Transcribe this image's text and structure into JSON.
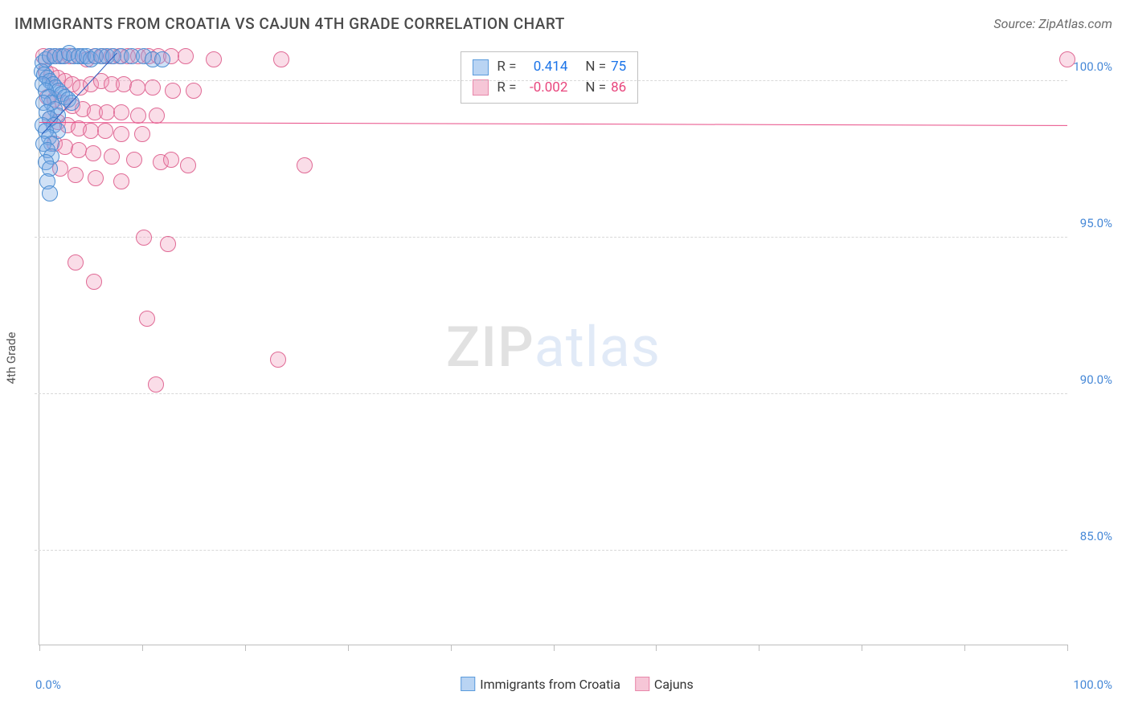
{
  "title": "IMMIGRANTS FROM CROATIA VS CAJUN 4TH GRADE CORRELATION CHART",
  "source": "Source: ZipAtlas.com",
  "watermark": {
    "part1": "ZIP",
    "part2": "atlas"
  },
  "ylabel": "4th Grade",
  "chart": {
    "type": "scatter",
    "background_color": "#ffffff",
    "grid_color": "#d8d8d8",
    "axis_color": "#bdbdbd",
    "xlim": [
      0,
      100
    ],
    "ylim": [
      82,
      101
    ],
    "yticks": [
      {
        "v": 85,
        "label": "85.0%"
      },
      {
        "v": 90,
        "label": "90.0%"
      },
      {
        "v": 95,
        "label": "95.0%"
      },
      {
        "v": 100,
        "label": "100.0%"
      }
    ],
    "xtick_positions": [
      0,
      10,
      20,
      30,
      40,
      50,
      60,
      70,
      80,
      90,
      100
    ],
    "xlim_labels": {
      "left": "0.0%",
      "right": "100.0%"
    },
    "marker_radius": 9,
    "marker_border": 1.4,
    "series": [
      {
        "name": "Immigrants from Croatia",
        "swatch_fill": "#b9d4f3",
        "swatch_border": "#5a9bdc",
        "point_fill": "rgba(120,170,230,0.35)",
        "point_border": "#4d8fd3",
        "R": "0.414",
        "N": "75",
        "trend": {
          "x1": 0.2,
          "y1": 98.3,
          "x2": 7.5,
          "y2": 100.9,
          "color": "#2b5fbf",
          "width": 1.6
        },
        "points": [
          [
            0.3,
            100.6
          ],
          [
            0.6,
            100.7
          ],
          [
            1.0,
            100.8
          ],
          [
            1.5,
            100.8
          ],
          [
            2.0,
            100.8
          ],
          [
            2.4,
            100.8
          ],
          [
            2.9,
            100.9
          ],
          [
            3.4,
            100.8
          ],
          [
            3.8,
            100.8
          ],
          [
            4.2,
            100.8
          ],
          [
            4.6,
            100.8
          ],
          [
            5.0,
            100.7
          ],
          [
            5.5,
            100.8
          ],
          [
            6.0,
            100.8
          ],
          [
            6.6,
            100.8
          ],
          [
            7.2,
            100.8
          ],
          [
            8.0,
            100.8
          ],
          [
            9.0,
            100.8
          ],
          [
            10.2,
            100.8
          ],
          [
            11.0,
            100.7
          ],
          [
            12.0,
            100.7
          ],
          [
            0.2,
            100.3
          ],
          [
            0.5,
            100.2
          ],
          [
            0.8,
            100.1
          ],
          [
            1.0,
            100.0
          ],
          [
            1.3,
            99.9
          ],
          [
            1.6,
            99.8
          ],
          [
            1.9,
            99.7
          ],
          [
            2.2,
            99.6
          ],
          [
            2.5,
            99.5
          ],
          [
            2.8,
            99.4
          ],
          [
            3.1,
            99.3
          ],
          [
            0.3,
            99.9
          ],
          [
            0.6,
            99.7
          ],
          [
            0.9,
            99.5
          ],
          [
            1.2,
            99.3
          ],
          [
            1.5,
            99.1
          ],
          [
            1.8,
            98.9
          ],
          [
            0.4,
            99.3
          ],
          [
            0.7,
            99.0
          ],
          [
            1.0,
            98.8
          ],
          [
            1.4,
            98.6
          ],
          [
            1.8,
            98.4
          ],
          [
            0.3,
            98.6
          ],
          [
            0.6,
            98.4
          ],
          [
            0.9,
            98.2
          ],
          [
            1.2,
            98.0
          ],
          [
            0.4,
            98.0
          ],
          [
            0.8,
            97.8
          ],
          [
            1.2,
            97.6
          ],
          [
            0.6,
            97.4
          ],
          [
            1.0,
            97.2
          ],
          [
            0.8,
            96.8
          ],
          [
            1.0,
            96.4
          ]
        ]
      },
      {
        "name": "Cajuns",
        "swatch_fill": "#f6c6d7",
        "swatch_border": "#e887aa",
        "point_fill": "rgba(240,150,185,0.32)",
        "point_border": "#e06a95",
        "R": "-0.002",
        "N": "86",
        "trend": {
          "x1": 0.0,
          "y1": 98.7,
          "x2": 100.0,
          "y2": 98.6,
          "color": "#e84c86",
          "width": 1.6
        },
        "points": [
          [
            0.4,
            100.8
          ],
          [
            1.0,
            100.8
          ],
          [
            1.6,
            100.8
          ],
          [
            2.3,
            100.8
          ],
          [
            3.0,
            100.8
          ],
          [
            3.8,
            100.8
          ],
          [
            4.6,
            100.7
          ],
          [
            5.4,
            100.8
          ],
          [
            6.2,
            100.8
          ],
          [
            7.0,
            100.8
          ],
          [
            7.8,
            100.8
          ],
          [
            8.6,
            100.8
          ],
          [
            9.6,
            100.8
          ],
          [
            10.6,
            100.8
          ],
          [
            11.6,
            100.8
          ],
          [
            12.8,
            100.8
          ],
          [
            14.2,
            100.8
          ],
          [
            17.0,
            100.7
          ],
          [
            23.5,
            100.7
          ],
          [
            100.0,
            100.7
          ],
          [
            0.6,
            100.3
          ],
          [
            1.2,
            100.2
          ],
          [
            1.8,
            100.1
          ],
          [
            2.5,
            100.0
          ],
          [
            3.2,
            99.9
          ],
          [
            4.0,
            99.8
          ],
          [
            5.0,
            99.9
          ],
          [
            6.0,
            100.0
          ],
          [
            7.0,
            99.9
          ],
          [
            8.2,
            99.9
          ],
          [
            9.5,
            99.8
          ],
          [
            11.0,
            99.8
          ],
          [
            13.0,
            99.7
          ],
          [
            15.0,
            99.7
          ],
          [
            0.8,
            99.5
          ],
          [
            1.5,
            99.4
          ],
          [
            2.3,
            99.3
          ],
          [
            3.2,
            99.2
          ],
          [
            4.2,
            99.1
          ],
          [
            5.4,
            99.0
          ],
          [
            6.6,
            99.0
          ],
          [
            8.0,
            99.0
          ],
          [
            9.6,
            98.9
          ],
          [
            11.4,
            98.9
          ],
          [
            1.0,
            98.8
          ],
          [
            1.8,
            98.7
          ],
          [
            2.7,
            98.6
          ],
          [
            3.8,
            98.5
          ],
          [
            5.0,
            98.4
          ],
          [
            6.4,
            98.4
          ],
          [
            8.0,
            98.3
          ],
          [
            10.0,
            98.3
          ],
          [
            1.5,
            98.0
          ],
          [
            2.5,
            97.9
          ],
          [
            3.8,
            97.8
          ],
          [
            5.2,
            97.7
          ],
          [
            7.0,
            97.6
          ],
          [
            9.2,
            97.5
          ],
          [
            11.8,
            97.4
          ],
          [
            2.0,
            97.2
          ],
          [
            3.5,
            97.0
          ],
          [
            5.5,
            96.9
          ],
          [
            8.0,
            96.8
          ],
          [
            12.8,
            97.5
          ],
          [
            14.5,
            97.3
          ],
          [
            25.8,
            97.3
          ],
          [
            3.5,
            94.2
          ],
          [
            5.3,
            93.6
          ],
          [
            10.2,
            95.0
          ],
          [
            12.5,
            94.8
          ],
          [
            10.5,
            92.4
          ],
          [
            11.3,
            90.3
          ],
          [
            23.2,
            91.1
          ]
        ]
      }
    ]
  },
  "legend_top": {
    "R_label": "R =",
    "N_label": "N ="
  },
  "legend_bottom": {
    "series1": "Immigrants from Croatia",
    "series2": "Cajuns"
  }
}
